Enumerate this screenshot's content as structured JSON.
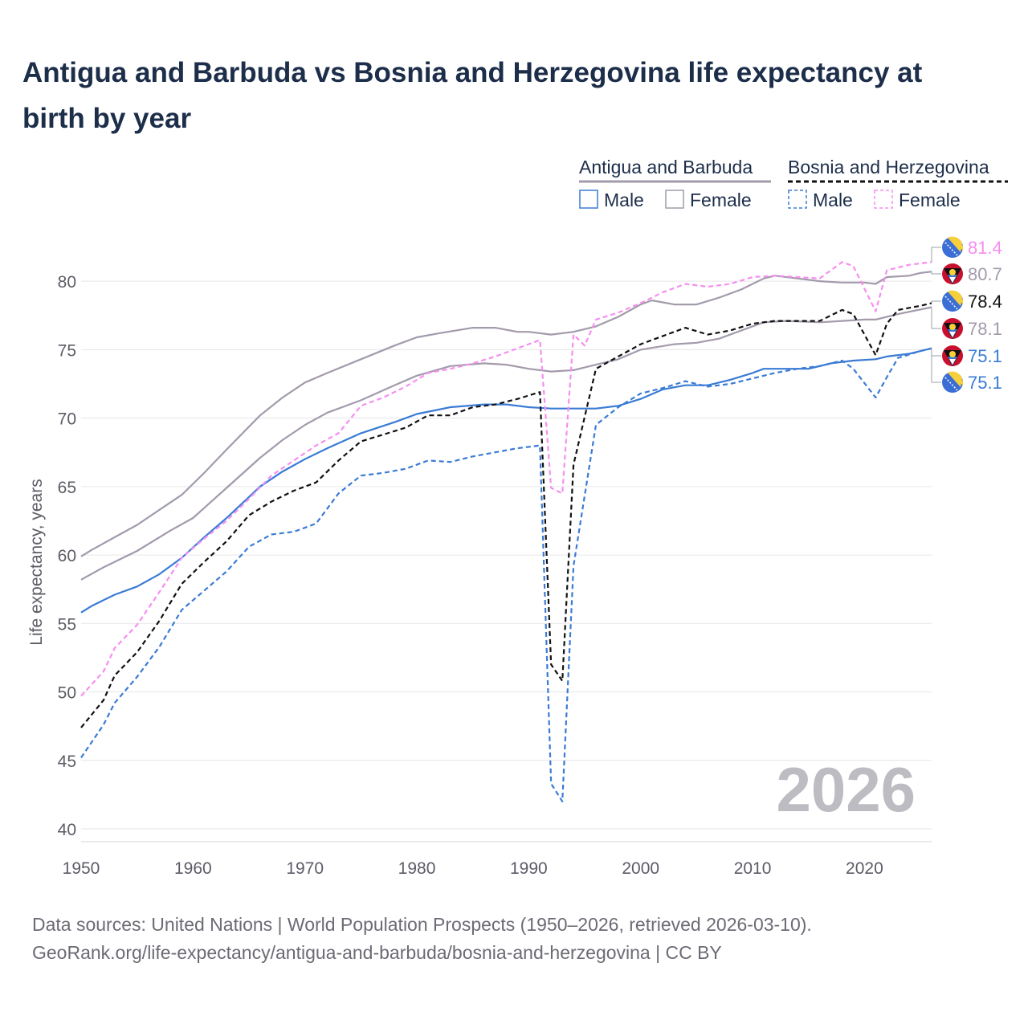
{
  "title": "Antigua and Barbuda vs Bosnia and Herzegovina life expectancy at birth by year",
  "source_line1": "Data sources: United Nations | World Population Prospects (1950–2026, retrieved 2026-03-10).",
  "source_line2": "GeoRank.org/life-expectancy/antigua-and-barbuda/bosnia-and-herzegovina | CC BY",
  "chart_data": {
    "type": "line",
    "title": "Antigua and Barbuda vs Bosnia and Herzegovina life expectancy at birth by year",
    "xlabel": "",
    "ylabel": "Life expectancy, years",
    "xlim": [
      1950,
      2026
    ],
    "ylim": [
      40,
      83
    ],
    "x_ticks": [
      "1950",
      "1960",
      "1970",
      "1980",
      "1990",
      "2000",
      "2010",
      "2020"
    ],
    "y_ticks": [
      "40",
      "45",
      "50",
      "55",
      "60",
      "65",
      "70",
      "75",
      "80"
    ],
    "year_watermark": "2026",
    "legend": {
      "group1": "Antigua and Barbuda",
      "group2": "Bosnia and Herzegovina",
      "male": "Male",
      "female": "Female"
    },
    "colors": {
      "ag_total": "#a39aab",
      "ag_male": "#3a7bd5",
      "ag_female": "#a39aab",
      "ba_total": "#111111",
      "ba_male": "#3a7bd5",
      "ba_female": "#f68ef0"
    },
    "end_labels": [
      {
        "series": "ba_female",
        "text": "81.4",
        "flag": "ba-flag-icon"
      },
      {
        "series": "ag_total",
        "text": "80.7",
        "flag": "ag-flag-icon"
      },
      {
        "series": "ba_total",
        "text": "78.4",
        "flag": "ba-flag-icon"
      },
      {
        "series": "ag_female",
        "text": "78.1",
        "flag": "ag-flag-icon"
      },
      {
        "series": "ag_male",
        "text": "75.1",
        "flag": "ag-flag-icon"
      },
      {
        "series": "ba_male",
        "text": "75.1",
        "flag": "ba-flag-icon"
      }
    ],
    "series": [
      {
        "key": "ag_total",
        "name": "Antigua and Barbuda",
        "dashed": false,
        "x": [
          1950,
          1951,
          1953,
          1955,
          1957,
          1959,
          1961,
          1963,
          1966,
          1968,
          1970,
          1972,
          1975,
          1978,
          1980,
          1982,
          1985,
          1987,
          1989,
          1990,
          1992,
          1994,
          1996,
          1998,
          2000,
          2001,
          2003,
          2005,
          2007,
          2009,
          2011,
          2012,
          2014,
          2016,
          2018,
          2020,
          2021,
          2022,
          2024,
          2025,
          2026
        ],
        "y": [
          59.9,
          60.4,
          61.3,
          62.2,
          63.3,
          64.4,
          66.0,
          67.7,
          70.2,
          71.5,
          72.6,
          73.3,
          74.3,
          75.3,
          75.9,
          76.2,
          76.6,
          76.6,
          76.3,
          76.3,
          76.1,
          76.3,
          76.7,
          77.4,
          78.3,
          78.6,
          78.3,
          78.3,
          78.8,
          79.4,
          80.2,
          80.4,
          80.2,
          80.0,
          79.9,
          79.9,
          79.8,
          80.3,
          80.4,
          80.6,
          80.7
        ]
      },
      {
        "key": "ag_female",
        "name": "Antigua and Barbuda Female",
        "dashed": false,
        "x": [
          1950,
          1952,
          1955,
          1958,
          1960,
          1963,
          1966,
          1968,
          1970,
          1972,
          1975,
          1978,
          1980,
          1983,
          1986,
          1988,
          1990,
          1992,
          1994,
          1996,
          1998,
          2000,
          2003,
          2005,
          2007,
          2009,
          2011,
          2013,
          2016,
          2018,
          2020,
          2021,
          2023,
          2026
        ],
        "y": [
          58.2,
          59.1,
          60.3,
          61.8,
          62.7,
          64.9,
          67.1,
          68.4,
          69.5,
          70.4,
          71.3,
          72.4,
          73.1,
          73.8,
          74.0,
          73.9,
          73.6,
          73.4,
          73.5,
          73.9,
          74.3,
          75.0,
          75.4,
          75.5,
          75.8,
          76.4,
          77.0,
          77.1,
          77.0,
          77.1,
          77.2,
          77.2,
          77.6,
          78.1
        ]
      },
      {
        "key": "ag_male",
        "name": "Antigua and Barbuda Male",
        "dashed": false,
        "x": [
          1950,
          1951,
          1953,
          1955,
          1957,
          1959,
          1961,
          1963,
          1966,
          1968,
          1970,
          1972,
          1975,
          1978,
          1980,
          1983,
          1986,
          1988,
          1990,
          1992,
          1994,
          1996,
          1998,
          2000,
          2002,
          2004,
          2006,
          2008,
          2010,
          2011,
          2013,
          2015,
          2017,
          2019,
          2021,
          2022,
          2024,
          2026
        ],
        "y": [
          55.8,
          56.3,
          57.1,
          57.7,
          58.6,
          59.8,
          61.3,
          62.7,
          65.0,
          66.1,
          67.0,
          67.8,
          68.9,
          69.7,
          70.3,
          70.8,
          71.0,
          71.0,
          70.8,
          70.7,
          70.7,
          70.7,
          70.9,
          71.4,
          72.1,
          72.4,
          72.4,
          72.8,
          73.3,
          73.6,
          73.6,
          73.6,
          74.0,
          74.2,
          74.3,
          74.5,
          74.7,
          75.1
        ]
      },
      {
        "key": "ba_total",
        "name": "Bosnia and Herzegovina",
        "dashed": true,
        "x": [
          1950,
          1952,
          1953,
          1955,
          1957,
          1959,
          1961,
          1963,
          1965,
          1967,
          1969,
          1971,
          1973,
          1975,
          1977,
          1979,
          1981,
          1983,
          1985,
          1987,
          1989,
          1991,
          1992,
          1993,
          1994,
          1996,
          1998,
          2000,
          2002,
          2004,
          2006,
          2008,
          2010,
          2012,
          2014,
          2016,
          2018,
          2019,
          2021,
          2022,
          2023,
          2025,
          2026
        ],
        "y": [
          47.4,
          49.4,
          51.2,
          52.9,
          55.2,
          57.9,
          59.5,
          61.0,
          62.9,
          63.9,
          64.7,
          65.3,
          66.9,
          68.3,
          68.8,
          69.3,
          70.2,
          70.2,
          70.8,
          71.0,
          71.4,
          71.9,
          52.0,
          50.8,
          66.6,
          73.6,
          74.5,
          75.4,
          76.0,
          76.6,
          76.1,
          76.4,
          76.9,
          77.1,
          77.1,
          77.1,
          77.9,
          77.6,
          74.6,
          76.9,
          77.9,
          78.2,
          78.4
        ]
      },
      {
        "key": "ba_female",
        "name": "Bosnia and Herzegovina Female",
        "dashed": true,
        "x": [
          1950,
          1952,
          1953,
          1955,
          1957,
          1959,
          1961,
          1963,
          1965,
          1967,
          1969,
          1971,
          1973,
          1975,
          1977,
          1979,
          1981,
          1983,
          1985,
          1987,
          1989,
          1991,
          1992,
          1993,
          1994,
          1995,
          1996,
          1998,
          2000,
          2002,
          2004,
          2006,
          2008,
          2010,
          2012,
          2014,
          2016,
          2018,
          2019,
          2021,
          2022,
          2024,
          2026
        ],
        "y": [
          49.7,
          51.5,
          53.2,
          54.9,
          57.3,
          59.8,
          61.2,
          62.5,
          64.1,
          65.8,
          66.9,
          68.0,
          68.9,
          70.9,
          71.5,
          72.3,
          73.3,
          73.6,
          74.0,
          74.5,
          75.1,
          75.7,
          64.9,
          64.5,
          76.1,
          75.3,
          77.2,
          77.7,
          78.4,
          79.2,
          79.8,
          79.6,
          79.8,
          80.3,
          80.4,
          80.3,
          80.2,
          81.4,
          81.1,
          77.8,
          80.8,
          81.2,
          81.4
        ]
      },
      {
        "key": "ba_male",
        "name": "Bosnia and Herzegovina Male",
        "dashed": true,
        "x": [
          1950,
          1952,
          1953,
          1955,
          1957,
          1959,
          1961,
          1963,
          1965,
          1967,
          1969,
          1971,
          1973,
          1975,
          1977,
          1979,
          1981,
          1983,
          1985,
          1987,
          1989,
          1991,
          1992,
          1993,
          1994,
          1996,
          1998,
          2000,
          2002,
          2004,
          2006,
          2008,
          2010,
          2012,
          2014,
          2016,
          2018,
          2019,
          2021,
          2022,
          2023,
          2025,
          2026
        ],
        "y": [
          45.2,
          47.6,
          49.2,
          51.1,
          53.3,
          56.0,
          57.4,
          58.8,
          60.6,
          61.5,
          61.7,
          62.3,
          64.5,
          65.8,
          66.0,
          66.3,
          66.9,
          66.8,
          67.2,
          67.5,
          67.8,
          68.0,
          43.3,
          42.0,
          59.2,
          69.5,
          70.8,
          71.8,
          72.2,
          72.7,
          72.3,
          72.5,
          72.9,
          73.3,
          73.6,
          73.8,
          74.2,
          73.6,
          71.5,
          73.0,
          74.4,
          74.9,
          75.1
        ]
      }
    ]
  }
}
